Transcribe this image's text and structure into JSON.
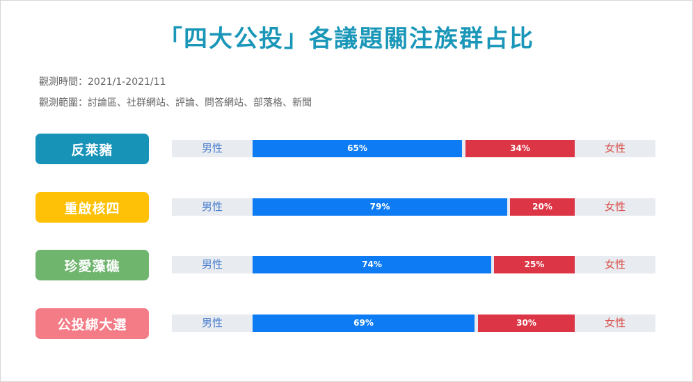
{
  "title": "「四大公投」各議題關注族群占比",
  "meta": {
    "period": "觀測時間：2021/1-2021/11",
    "scope": "觀測範圍：討論區、社群網站、評論、問答網站、部落格、新聞"
  },
  "labels": {
    "male": "男性",
    "female": "女性"
  },
  "colors": {
    "male": "#0d7cf4",
    "female": "#dc3545"
  },
  "chart_data": {
    "type": "bar",
    "orientation": "horizontal-stacked",
    "unit": "%",
    "categories": [
      "反萊豬",
      "重啟核四",
      "珍愛藻礁",
      "公投綁大選"
    ],
    "category_colors": [
      "#1893b8",
      "#ffc107",
      "#6fb56e",
      "#f47c86"
    ],
    "series": [
      {
        "name": "男性",
        "values": [
          65,
          79,
          74,
          69
        ]
      },
      {
        "name": "女性",
        "values": [
          34,
          20,
          25,
          30
        ]
      }
    ],
    "value_labels": [
      [
        "65%",
        "79%",
        "74%",
        "69%"
      ],
      [
        "34%",
        "20%",
        "25%",
        "30%"
      ]
    ]
  }
}
